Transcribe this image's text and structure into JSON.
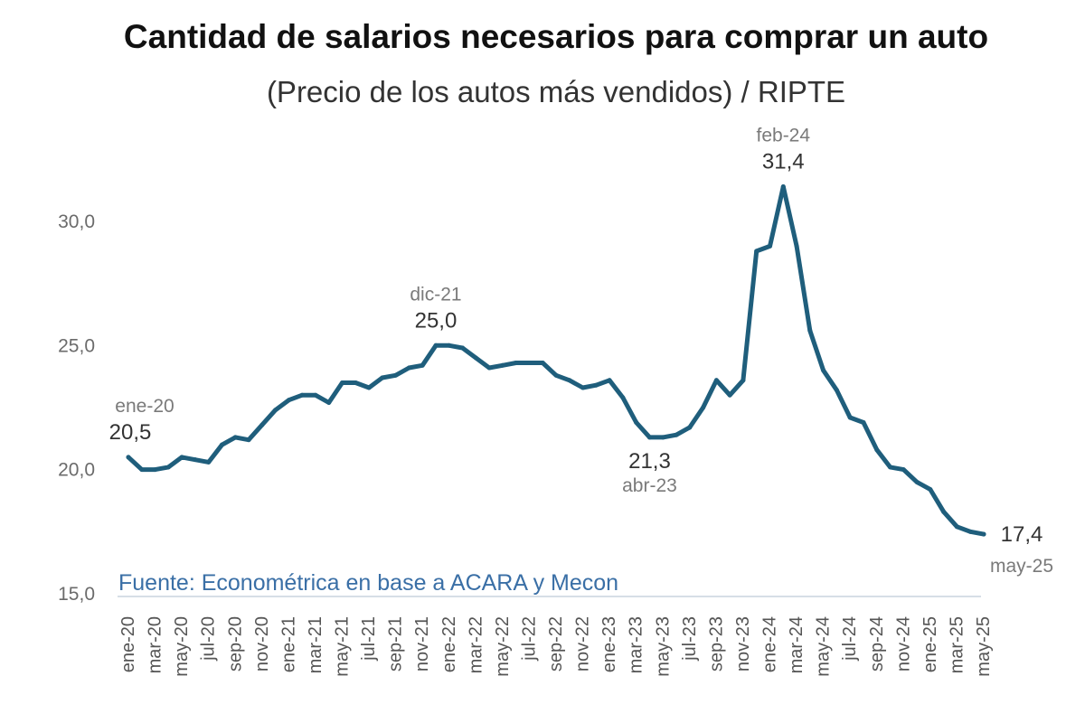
{
  "chart_data": {
    "type": "line",
    "title": "Cantidad de salarios necesarios para comprar un auto",
    "subtitle": "(Precio de los autos más vendidos) / RIPTE",
    "source": "Fuente: Econométrica en base a ACARA y Mecon",
    "ylim": [
      15,
      32
    ],
    "yticks": [
      "15,0",
      "20,0",
      "25,0",
      "30,0"
    ],
    "ytick_values": [
      15,
      20,
      25,
      30
    ],
    "grid": false,
    "line_color": "#1f5e7c",
    "categories": [
      "ene-20",
      "feb-20",
      "mar-20",
      "abr-20",
      "may-20",
      "jun-20",
      "jul-20",
      "ago-20",
      "sep-20",
      "oct-20",
      "nov-20",
      "dic-20",
      "ene-21",
      "feb-21",
      "mar-21",
      "abr-21",
      "may-21",
      "jun-21",
      "jul-21",
      "ago-21",
      "sep-21",
      "oct-21",
      "nov-21",
      "dic-21",
      "ene-22",
      "feb-22",
      "mar-22",
      "abr-22",
      "may-22",
      "jun-22",
      "jul-22",
      "ago-22",
      "sep-22",
      "oct-22",
      "nov-22",
      "dic-22",
      "ene-23",
      "feb-23",
      "mar-23",
      "abr-23",
      "may-23",
      "jun-23",
      "jul-23",
      "ago-23",
      "sep-23",
      "oct-23",
      "nov-23",
      "dic-23",
      "ene-24",
      "feb-24",
      "mar-24",
      "abr-24",
      "may-24",
      "jun-24",
      "jul-24",
      "ago-24",
      "sep-24",
      "oct-24",
      "nov-24",
      "dic-24",
      "ene-25",
      "feb-25",
      "mar-25",
      "abr-25",
      "may-25"
    ],
    "tick_labels": [
      "ene-20",
      "mar-20",
      "may-20",
      "jul-20",
      "sep-20",
      "nov-20",
      "ene-21",
      "mar-21",
      "may-21",
      "jul-21",
      "sep-21",
      "nov-21",
      "ene-22",
      "mar-22",
      "may-22",
      "jul-22",
      "sep-22",
      "nov-22",
      "ene-23",
      "mar-23",
      "may-23",
      "jul-23",
      "sep-23",
      "nov-23",
      "ene-24",
      "mar-24",
      "may-24",
      "jul-24",
      "sep-24",
      "nov-24",
      "ene-25",
      "mar-25",
      "may-25"
    ],
    "series": [
      {
        "values": [
          20.5,
          20.0,
          20.0,
          20.1,
          20.5,
          20.4,
          20.3,
          21.0,
          21.3,
          21.2,
          21.8,
          22.4,
          22.8,
          23.0,
          23.0,
          22.7,
          23.5,
          23.5,
          23.3,
          23.7,
          23.8,
          24.1,
          24.2,
          25.0,
          25.0,
          24.9,
          24.5,
          24.1,
          24.2,
          24.3,
          24.3,
          24.3,
          23.8,
          23.6,
          23.3,
          23.4,
          23.6,
          22.9,
          21.9,
          21.3,
          21.3,
          21.4,
          21.7,
          22.5,
          23.6,
          23.0,
          23.6,
          28.8,
          29.0,
          31.4,
          29.0,
          25.6,
          24.0,
          23.2,
          22.1,
          21.9,
          20.8,
          20.1,
          20.0,
          19.5,
          19.2,
          18.3,
          17.7,
          17.5,
          17.4
        ]
      }
    ],
    "annotations": [
      {
        "date": "ene-20",
        "value": "20,5",
        "index": 0,
        "position": "above"
      },
      {
        "date": "dic-21",
        "value": "25,0",
        "index": 23,
        "position": "above"
      },
      {
        "date": "abr-23",
        "value": "21,3",
        "index": 39,
        "position": "below"
      },
      {
        "date": "feb-24",
        "value": "31,4",
        "index": 49,
        "position": "above"
      },
      {
        "date": "may-25",
        "value": "17,4",
        "index": 64,
        "position": "right"
      }
    ]
  }
}
